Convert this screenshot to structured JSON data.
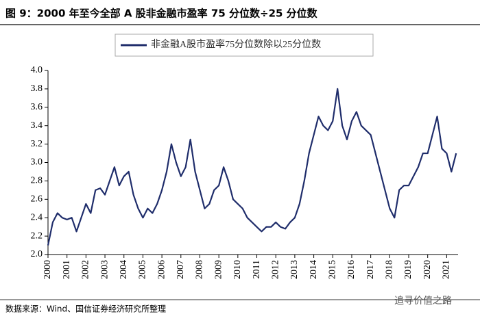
{
  "chart_data": {
    "type": "line",
    "title": "图 9：2000 年至今全部 A 股非金融市盈率 75 分位数÷25 分位数",
    "source": "数据来源：Wind、国信证券经济研究所整理",
    "watermark": "追寻价值之路",
    "legend": "top",
    "x": [
      2000,
      2000.25,
      2000.5,
      2000.75,
      2001,
      2001.25,
      2001.5,
      2001.75,
      2002,
      2002.25,
      2002.5,
      2002.75,
      2003,
      2003.25,
      2003.5,
      2003.75,
      2004,
      2004.25,
      2004.5,
      2004.75,
      2005,
      2005.25,
      2005.5,
      2005.75,
      2006,
      2006.25,
      2006.5,
      2006.75,
      2007,
      2007.25,
      2007.5,
      2007.75,
      2008,
      2008.25,
      2008.5,
      2008.75,
      2009,
      2009.25,
      2009.5,
      2009.75,
      2010,
      2010.25,
      2010.5,
      2010.75,
      2011,
      2011.25,
      2011.5,
      2011.75,
      2012,
      2012.25,
      2012.5,
      2012.75,
      2013,
      2013.25,
      2013.5,
      2013.75,
      2014,
      2014.25,
      2014.5,
      2014.75,
      2015,
      2015.25,
      2015.5,
      2015.75,
      2016,
      2016.25,
      2016.5,
      2016.75,
      2017,
      2017.25,
      2017.5,
      2017.75,
      2018,
      2018.25,
      2018.5,
      2018.75,
      2019,
      2019.25,
      2019.5,
      2019.75,
      2020,
      2020.25,
      2020.5,
      2020.75,
      2021,
      2021.25,
      2021.5
    ],
    "series": [
      {
        "name": "非金融A股市盈率75分位数除以25分位数",
        "color": "#1f2d6b",
        "values": [
          2.1,
          2.35,
          2.45,
          2.4,
          2.38,
          2.4,
          2.25,
          2.4,
          2.55,
          2.45,
          2.7,
          2.72,
          2.65,
          2.8,
          2.95,
          2.75,
          2.85,
          2.9,
          2.65,
          2.5,
          2.4,
          2.5,
          2.45,
          2.55,
          2.7,
          2.9,
          3.2,
          3.0,
          2.85,
          2.95,
          3.25,
          2.9,
          2.7,
          2.5,
          2.55,
          2.7,
          2.75,
          2.95,
          2.8,
          2.6,
          2.55,
          2.5,
          2.4,
          2.35,
          2.3,
          2.25,
          2.3,
          2.3,
          2.35,
          2.3,
          2.28,
          2.35,
          2.4,
          2.55,
          2.8,
          3.1,
          3.3,
          3.5,
          3.4,
          3.35,
          3.45,
          3.8,
          3.4,
          3.25,
          3.45,
          3.55,
          3.4,
          3.35,
          3.3,
          3.1,
          2.9,
          2.7,
          2.5,
          2.4,
          2.7,
          2.75,
          2.75,
          2.85,
          2.95,
          3.1,
          3.1,
          3.3,
          3.5,
          3.15,
          3.1,
          2.9,
          3.1
        ]
      }
    ],
    "xlim": [
      2000,
      2021.6
    ],
    "xticks": [
      2000,
      2001,
      2002,
      2003,
      2004,
      2005,
      2006,
      2007,
      2008,
      2009,
      2010,
      2011,
      2012,
      2013,
      2014,
      2015,
      2016,
      2017,
      2018,
      2019,
      2020,
      2021
    ],
    "ylim": [
      2,
      4
    ],
    "yticks": [
      {
        "value": 2,
        "label": "2.0"
      },
      2.2,
      2.4,
      2.6,
      2.8,
      {
        "value": 3,
        "label": "3.0"
      },
      3.2,
      3.4,
      3.6,
      3.8,
      {
        "value": 4,
        "label": "4.0"
      }
    ],
    "grid": false
  }
}
